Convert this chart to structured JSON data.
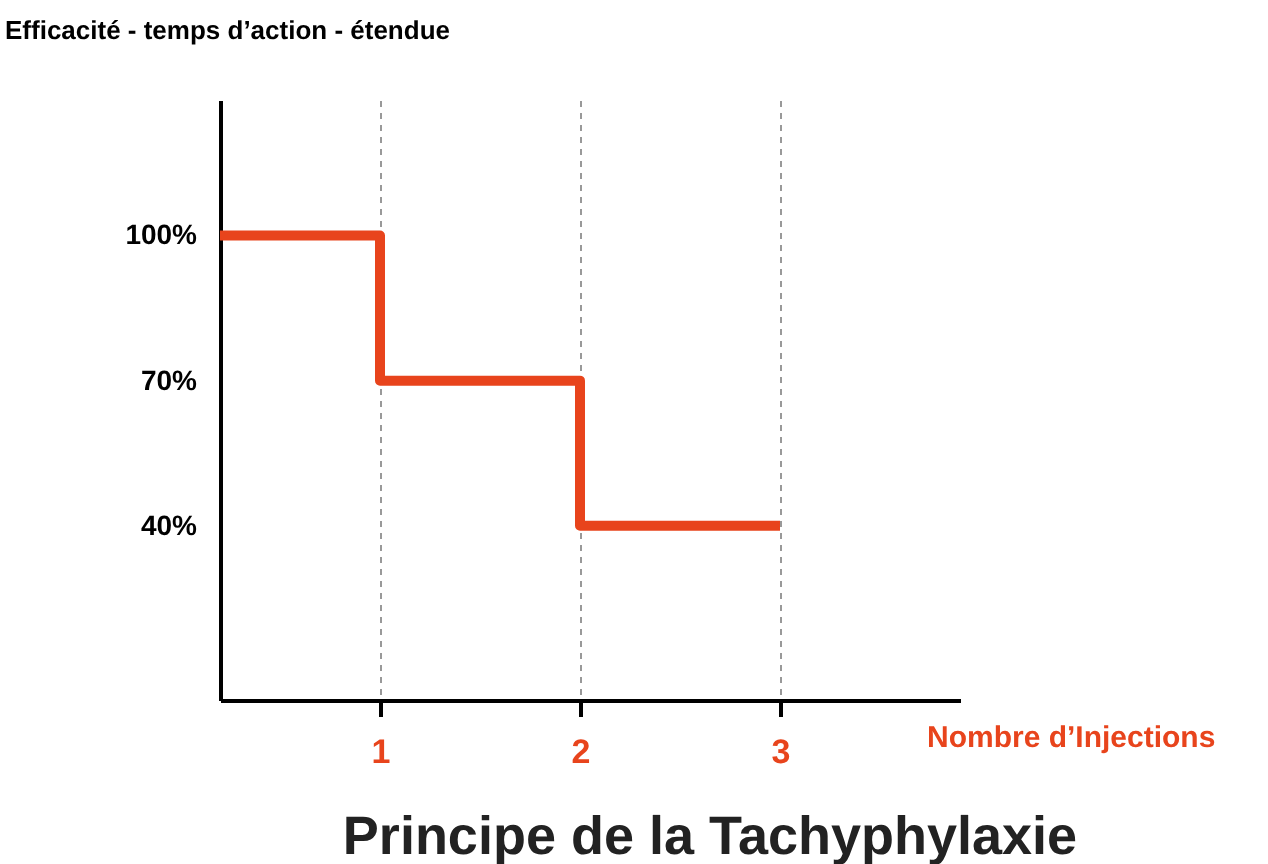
{
  "chart_data": {
    "type": "step",
    "title": "Principe de la Tachyphylaxie",
    "xlabel": "Nombre d’Injections",
    "ylabel": "Efficacité - temps d’action - étendue",
    "x": [
      0.2,
      1,
      2,
      3
    ],
    "values": [
      100,
      70,
      40,
      40
    ],
    "color": "#e8441c",
    "xlim": [
      0.2,
      3.9
    ],
    "xticks": [
      1,
      2,
      3
    ],
    "ylim": [
      4,
      128
    ],
    "yticks": [
      {
        "value": 40,
        "label": "40%"
      },
      {
        "value": 70,
        "label": "70%"
      },
      {
        "value": 100,
        "label": "100%"
      }
    ],
    "grid": "x",
    "line_style": "solid"
  }
}
